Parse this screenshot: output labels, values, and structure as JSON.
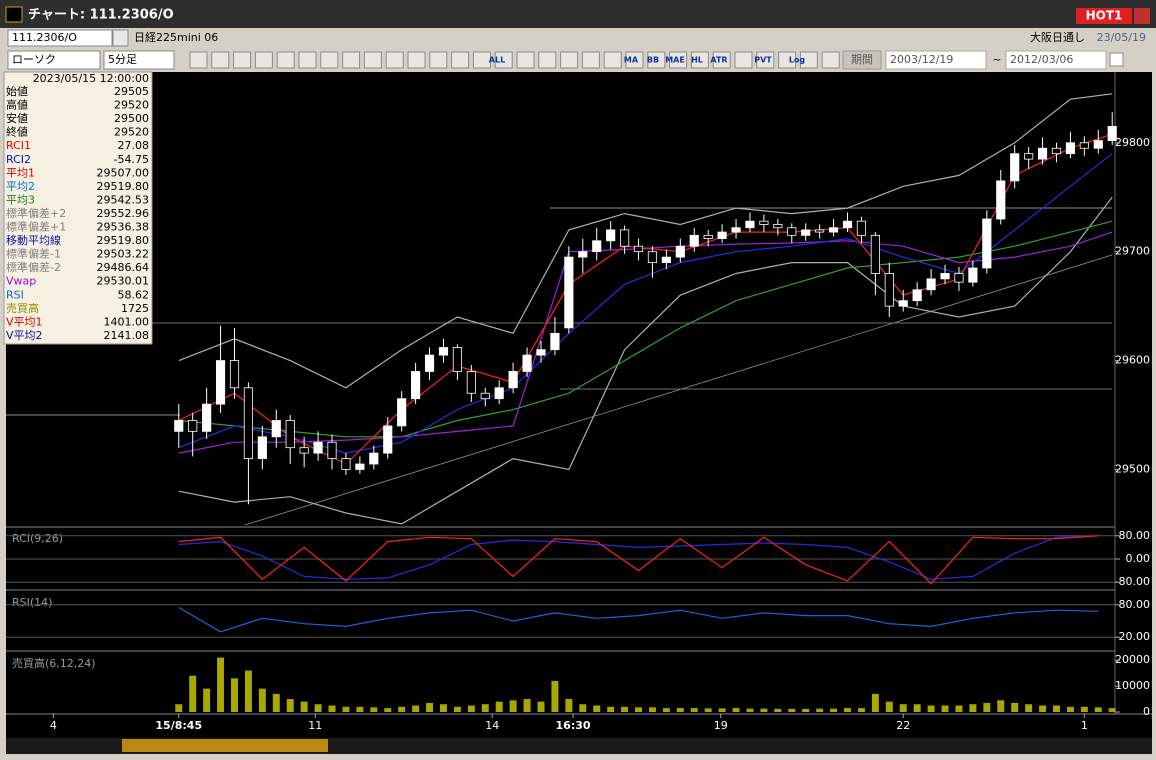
{
  "window": {
    "title": "チャート: 111.2306/O",
    "badge": "HOT1"
  },
  "toolbar": {
    "symbol": "111.2306/O",
    "name": "日経225mini 06",
    "market": "大阪日通し",
    "date": "23/05/19",
    "chart_style": "ローソク",
    "interval": "5分足",
    "period_label": "期間",
    "from": "2003/12/19",
    "tilde": "~",
    "to": "2012/03/06",
    "icons": [
      "ALL",
      "MA",
      "BB",
      "MAE",
      "HL",
      "ATR",
      "PVT",
      "Log"
    ]
  },
  "info_panel": {
    "datetime": "2023/05/15 12:00:00",
    "rows": [
      {
        "label": "始値",
        "value": "29505",
        "color": "#000000"
      },
      {
        "label": "高値",
        "value": "29520",
        "color": "#000000"
      },
      {
        "label": "安値",
        "value": "29500",
        "color": "#000000"
      },
      {
        "label": "終値",
        "value": "29520",
        "color": "#000000"
      },
      {
        "label": "RCI1",
        "value": "27.08",
        "color": "#e00000"
      },
      {
        "label": "RCI2",
        "value": "-54.75",
        "color": "#1010a0"
      },
      {
        "label": "平均1",
        "value": "29507.00",
        "color": "#e00000"
      },
      {
        "label": "平均2",
        "value": "29519.80",
        "color": "#0070c0"
      },
      {
        "label": "平均3",
        "value": "29542.53",
        "color": "#208020"
      },
      {
        "label": "標準偏差+2",
        "value": "29552.96",
        "color": "#808080"
      },
      {
        "label": "標準偏差+1",
        "value": "29536.38",
        "color": "#808080"
      },
      {
        "label": "移動平均線",
        "value": "29519.80",
        "color": "#1010a0"
      },
      {
        "label": "標準偏差-1",
        "value": "29503.22",
        "color": "#808080"
      },
      {
        "label": "標準偏差-2",
        "value": "29486.64",
        "color": "#808080"
      },
      {
        "label": "Vwap",
        "value": "29530.01",
        "color": "#9010c0"
      },
      {
        "label": "RSI",
        "value": "58.62",
        "color": "#0070c0"
      },
      {
        "label": "売買高",
        "value": "1725",
        "color": "#909000"
      },
      {
        "label": "V平均1",
        "value": "1401.00",
        "color": "#e00000"
      },
      {
        "label": "V平均2",
        "value": "2141.08",
        "color": "#1010a0"
      }
    ]
  },
  "chart_data": [
    {
      "type": "candlestick",
      "up_color": "#ffffff",
      "down_color": "#000000",
      "xlim": [
        -12.4,
        67.2
      ],
      "xticks": [
        {
          "value": -9,
          "label": "4"
        },
        {
          "value": 0,
          "label": "15/8:45"
        },
        {
          "value": 9.8,
          "label": "11"
        },
        {
          "value": 22.5,
          "label": "14"
        },
        {
          "value": 28.3,
          "label": "16:30"
        },
        {
          "value": 38.9,
          "label": "19"
        },
        {
          "value": 52,
          "label": "22"
        },
        {
          "value": 65,
          "label": "1"
        }
      ],
      "ylim": [
        29449,
        29865
      ],
      "yticks": [
        29800,
        29700,
        29600,
        29500
      ],
      "ohlc": [
        [
          29535,
          29560,
          29520,
          29545
        ],
        [
          29545,
          29552,
          29512,
          29535
        ],
        [
          29535,
          29575,
          29528,
          29560
        ],
        [
          29560,
          29632,
          29552,
          29600
        ],
        [
          29600,
          29630,
          29565,
          29575
        ],
        [
          29575,
          29580,
          29468,
          29510
        ],
        [
          29510,
          29540,
          29500,
          29530
        ],
        [
          29530,
          29555,
          29520,
          29545
        ],
        [
          29545,
          29550,
          29505,
          29520
        ],
        [
          29520,
          29530,
          29502,
          29515
        ],
        [
          29515,
          29535,
          29508,
          29525
        ],
        [
          29525,
          29532,
          29500,
          29510
        ],
        [
          29510,
          29515,
          29495,
          29500
        ],
        [
          29500,
          29512,
          29496,
          29505
        ],
        [
          29505,
          29522,
          29500,
          29515
        ],
        [
          29515,
          29548,
          29510,
          29540
        ],
        [
          29540,
          29572,
          29535,
          29565
        ],
        [
          29565,
          29598,
          29560,
          29590
        ],
        [
          29590,
          29612,
          29582,
          29605
        ],
        [
          29605,
          29620,
          29598,
          29612
        ],
        [
          29612,
          29615,
          29582,
          29590
        ],
        [
          29590,
          29596,
          29562,
          29570
        ],
        [
          29570,
          29575,
          29558,
          29565
        ],
        [
          29565,
          29582,
          29560,
          29575
        ],
        [
          29575,
          29598,
          29570,
          29590
        ],
        [
          29590,
          29612,
          29585,
          29605
        ],
        [
          29605,
          29618,
          29598,
          29610
        ],
        [
          29610,
          29640,
          29605,
          29625
        ],
        [
          29630,
          29705,
          29625,
          29695
        ],
        [
          29695,
          29712,
          29680,
          29700
        ],
        [
          29700,
          29722,
          29692,
          29710
        ],
        [
          29710,
          29728,
          29702,
          29720
        ],
        [
          29720,
          29724,
          29698,
          29705
        ],
        [
          29705,
          29712,
          29692,
          29700
        ],
        [
          29700,
          29705,
          29676,
          29690
        ],
        [
          29690,
          29702,
          29684,
          29695
        ],
        [
          29695,
          29712,
          29690,
          29705
        ],
        [
          29705,
          29722,
          29700,
          29715
        ],
        [
          29715,
          29720,
          29705,
          29712
        ],
        [
          29712,
          29725,
          29708,
          29718
        ],
        [
          29718,
          29730,
          29712,
          29722
        ],
        [
          29722,
          29736,
          29718,
          29728
        ],
        [
          29728,
          29734,
          29718,
          29725
        ],
        [
          29725,
          29730,
          29715,
          29722
        ],
        [
          29722,
          29726,
          29708,
          29715
        ],
        [
          29715,
          29726,
          29710,
          29720
        ],
        [
          29720,
          29725,
          29712,
          29718
        ],
        [
          29718,
          29730,
          29714,
          29722
        ],
        [
          29722,
          29736,
          29718,
          29728
        ],
        [
          29728,
          29732,
          29708,
          29715
        ],
        [
          29715,
          29718,
          29660,
          29680
        ],
        [
          29680,
          29690,
          29640,
          29650
        ],
        [
          29650,
          29665,
          29645,
          29655
        ],
        [
          29655,
          29672,
          29650,
          29665
        ],
        [
          29665,
          29684,
          29660,
          29675
        ],
        [
          29675,
          29688,
          29670,
          29680
        ],
        [
          29680,
          29686,
          29664,
          29672
        ],
        [
          29672,
          29692,
          29668,
          29685
        ],
        [
          29685,
          29738,
          29680,
          29730
        ],
        [
          29730,
          29775,
          29725,
          29765
        ],
        [
          29765,
          29798,
          29758,
          29790
        ],
        [
          29790,
          29796,
          29776,
          29785
        ],
        [
          29785,
          29805,
          29780,
          29795
        ],
        [
          29795,
          29800,
          29782,
          29790
        ],
        [
          29790,
          29810,
          29786,
          29800
        ],
        [
          29800,
          29806,
          29788,
          29795
        ],
        [
          29795,
          29812,
          29790,
          29802
        ],
        [
          29802,
          29828,
          29798,
          29815
        ]
      ],
      "x": [
        0,
        4,
        8,
        12,
        16,
        20,
        24,
        28,
        32,
        36,
        40,
        44,
        48,
        52,
        56,
        60,
        64,
        67
      ],
      "series": [
        {
          "color": "#b0b0b0",
          "values": [
            29600,
            29620,
            29600,
            29575,
            29610,
            29640,
            29625,
            29720,
            29735,
            29725,
            29740,
            29735,
            29740,
            29760,
            29770,
            29800,
            29840,
            29845
          ]
        },
        {
          "color": "#b0b0b0",
          "values": [
            29480,
            29470,
            29475,
            29460,
            29450,
            29480,
            29510,
            29500,
            29610,
            29660,
            29680,
            29690,
            29690,
            29650,
            29640,
            29650,
            29700,
            29750
          ]
        },
        {
          "color": "#30a030",
          "values": [
            29545,
            29540,
            29535,
            29530,
            29530,
            29545,
            29555,
            29570,
            29600,
            29630,
            29655,
            29670,
            29685,
            29690,
            29695,
            29705,
            29718,
            29728
          ]
        },
        {
          "color": "#a020e0",
          "values": [
            29515,
            29525,
            29525,
            29527,
            29530,
            29535,
            29540,
            29700,
            29702,
            29705,
            29707,
            29708,
            29710,
            29705,
            29690,
            29695,
            29705,
            29718
          ]
        },
        {
          "color": "#2030e0",
          "values": [
            29520,
            29540,
            29530,
            29515,
            29525,
            29555,
            29575,
            29625,
            29670,
            29690,
            29700,
            29705,
            29712,
            29695,
            29680,
            29720,
            29760,
            29790
          ]
        },
        {
          "color": "#ff2020",
          "values": [
            29545,
            29570,
            29530,
            29505,
            29555,
            29595,
            29580,
            29670,
            29705,
            29700,
            29718,
            29718,
            29722,
            29660,
            29675,
            29770,
            29795,
            29808
          ]
        }
      ]
    },
    {
      "type": "line",
      "title": "RCI(9,26)",
      "xlim": [
        -12.4,
        67.2
      ],
      "ylim": [
        -100,
        100
      ],
      "grid": true,
      "yticks": [
        {
          "value": 80,
          "label": "80.00"
        },
        {
          "value": 0,
          "label": "0.00"
        },
        {
          "value": -80,
          "label": "-80.00"
        }
      ],
      "x": [
        0,
        3,
        6,
        9,
        12,
        15,
        18,
        21,
        24,
        27,
        30,
        33,
        36,
        39,
        42,
        45,
        48,
        51,
        54,
        57,
        60,
        63,
        66
      ],
      "series": [
        {
          "color": "#2030e0",
          "values": [
            50,
            60,
            10,
            -60,
            -70,
            -65,
            -20,
            50,
            65,
            60,
            50,
            40,
            45,
            50,
            55,
            50,
            40,
            -10,
            -70,
            -60,
            20,
            75,
            80
          ]
        },
        {
          "color": "#ff2020",
          "values": [
            60,
            75,
            -70,
            40,
            -75,
            60,
            75,
            70,
            -60,
            70,
            60,
            -40,
            70,
            -30,
            75,
            -20,
            -75,
            60,
            -85,
            75,
            70,
            70,
            80
          ]
        }
      ]
    },
    {
      "type": "line",
      "title": "RSI(14)",
      "xlim": [
        -12.4,
        67.2
      ],
      "ylim": [
        0,
        100
      ],
      "grid": true,
      "yticks": [
        {
          "value": 80,
          "label": "80.00"
        },
        {
          "value": 20,
          "label": "20.00"
        }
      ],
      "x": [
        0,
        3,
        6,
        9,
        12,
        15,
        18,
        21,
        24,
        27,
        30,
        33,
        36,
        39,
        42,
        45,
        48,
        51,
        54,
        57,
        60,
        63,
        66
      ],
      "series": [
        {
          "color": "#2060e0",
          "values": [
            75,
            30,
            55,
            45,
            40,
            55,
            65,
            70,
            50,
            65,
            55,
            60,
            70,
            55,
            65,
            60,
            60,
            45,
            40,
            55,
            65,
            70,
            68
          ]
        }
      ]
    },
    {
      "type": "bar",
      "title": "売買高(6,12,24)",
      "xlim": [
        -12.4,
        67.2
      ],
      "ylim": [
        0,
        22000
      ],
      "yticks": [
        20000,
        10000,
        0
      ],
      "color": "#a8a800",
      "values": [
        3000,
        14000,
        9000,
        21000,
        13000,
        16000,
        9000,
        7000,
        5000,
        4000,
        3000,
        2500,
        2000,
        2000,
        1800,
        1500,
        2000,
        2500,
        3500,
        3000,
        2000,
        2500,
        3000,
        4000,
        4500,
        5000,
        4000,
        12000,
        5000,
        3000,
        2500,
        2000,
        2000,
        1800,
        1800,
        1500,
        1500,
        1500,
        1400,
        1400,
        1500,
        1300,
        1300,
        1200,
        1200,
        1200,
        1300,
        1300,
        1500,
        1500,
        7000,
        4000,
        3000,
        3000,
        2500,
        2500,
        2500,
        3000,
        3500,
        4500,
        3500,
        3000,
        2500,
        2500,
        2000,
        2000,
        1800,
        1500
      ]
    }
  ]
}
